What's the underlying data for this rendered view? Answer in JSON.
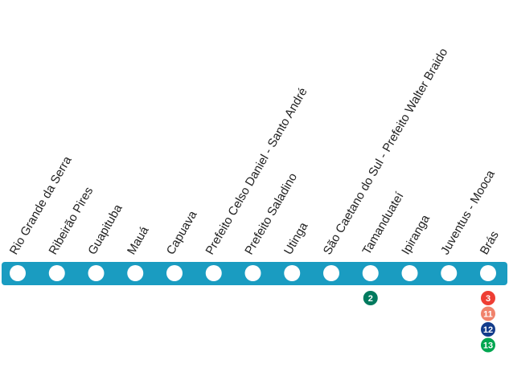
{
  "line": {
    "color": "#1a9cc1",
    "stations": [
      {
        "name": "Rio Grande da Serra",
        "transfers": []
      },
      {
        "name": "Ribeirão Pires",
        "transfers": []
      },
      {
        "name": "Guapituba",
        "transfers": []
      },
      {
        "name": "Mauá",
        "transfers": []
      },
      {
        "name": "Capuava",
        "transfers": []
      },
      {
        "name": "Prefeito Celso Daniel - Santo André",
        "transfers": []
      },
      {
        "name": "Prefeito Saladino",
        "transfers": []
      },
      {
        "name": "Utinga",
        "transfers": []
      },
      {
        "name": "São Caetano do Sul - Prefeito Walter Braido",
        "transfers": []
      },
      {
        "name": "Tamanduateí",
        "transfers": [
          {
            "label": "2",
            "color": "#007a5e"
          }
        ]
      },
      {
        "name": "Ipiranga",
        "transfers": []
      },
      {
        "name": "Juventus - Mooca",
        "transfers": []
      },
      {
        "name": "Brás",
        "transfers": [
          {
            "label": "3",
            "color": "#ee3e34"
          },
          {
            "label": "11",
            "color": "#f0826b"
          },
          {
            "label": "12",
            "color": "#133c8b"
          },
          {
            "label": "13",
            "color": "#00a650"
          }
        ]
      }
    ]
  }
}
